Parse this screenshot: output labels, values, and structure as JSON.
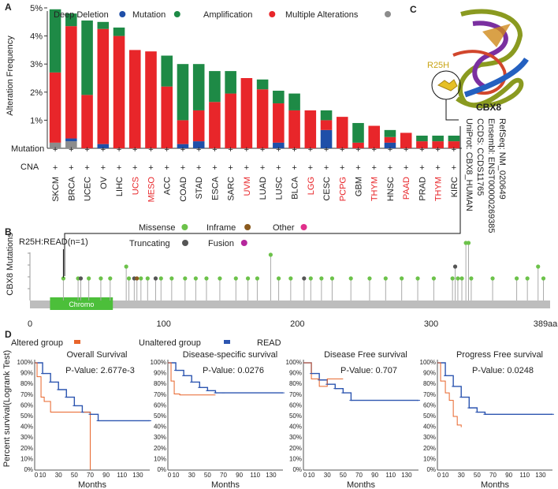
{
  "panel_labels": {
    "a": "A",
    "b": "B",
    "c": "C",
    "d": "D"
  },
  "colors": {
    "deep_deletion": "#1f4fa8",
    "mutation": "#1e8a46",
    "amplification": "#e8262a",
    "multiple": "#8c8c8c",
    "missense": "#6cc24a",
    "truncating": "#555555",
    "inframe": "#8a5a1e",
    "fusion": "#b5269c",
    "other": "#e0308b",
    "domain": "#4cbf3a",
    "survival_altered": "#e8642a",
    "survival_unaltered": "#2c55b0"
  },
  "chart_data": [
    {
      "type": "bar",
      "panel": "A",
      "ylabel": "Alteration Frequency",
      "ylim": [
        0,
        5
      ],
      "yticks": [
        "1%",
        "2%",
        "3%",
        "4%",
        "5%"
      ],
      "legend": [
        "Deep Deletion",
        "Mutation",
        "Amplification",
        "Multiple Alterations"
      ],
      "row_labels": [
        "Mutation",
        "CNA"
      ],
      "categories": [
        "SKCM",
        "BRCA",
        "UCEC",
        "OV",
        "LIHC",
        "UCS",
        "MESO",
        "ACC",
        "COAD",
        "STAD",
        "ESCA",
        "SARC",
        "UVM",
        "LUAD",
        "LUSC",
        "BLCA",
        "LGG",
        "CESC",
        "PCPG",
        "GBM",
        "THYM",
        "HNSC",
        "PAAD",
        "PRAD",
        "THYM",
        "KIRC"
      ],
      "highlighted": [
        "UCS",
        "MESO",
        "UVM",
        "LGG",
        "PCPG",
        "THYM",
        "PAAD"
      ],
      "series": [
        {
          "name": "Multiple Alterations",
          "values": [
            0.2,
            0.25,
            0,
            0,
            0,
            0,
            0,
            0,
            0,
            0,
            0,
            0,
            0,
            0,
            0,
            0,
            0,
            0,
            0,
            0,
            0,
            0,
            0,
            0,
            0,
            0
          ]
        },
        {
          "name": "Deep Deletion",
          "values": [
            0,
            0.1,
            0,
            0.15,
            0,
            0,
            0,
            0,
            0.15,
            0.25,
            0,
            0,
            0,
            0,
            0.2,
            0,
            0,
            0.65,
            0,
            0,
            0,
            0.2,
            0,
            0,
            0,
            0
          ]
        },
        {
          "name": "Amplification",
          "values": [
            2.5,
            4.0,
            1.9,
            4.1,
            4.0,
            3.5,
            3.45,
            2.2,
            0.85,
            1.1,
            1.65,
            1.95,
            2.5,
            2.1,
            1.4,
            1.35,
            1.35,
            0.35,
            1.12,
            0.2,
            0.8,
            0.2,
            0.55,
            0.25,
            0.25,
            0.25
          ]
        },
        {
          "name": "Mutation",
          "values": [
            2.25,
            0.45,
            2.65,
            0.25,
            0.3,
            0,
            0,
            1.1,
            2.0,
            1.65,
            1.1,
            0.8,
            0,
            0.35,
            0.45,
            0.6,
            0,
            0.35,
            0,
            0.7,
            0,
            0.25,
            0,
            0.2,
            0.2,
            0.2
          ]
        }
      ]
    },
    {
      "type": "scatter",
      "panel": "B",
      "ylabel": "CBX8 Mutations",
      "xlim": [
        0,
        389
      ],
      "xticks": [
        "0",
        "100",
        "200",
        "300",
        "389aa"
      ],
      "annotation": "R25H:READ(n=1)",
      "domain_label": "Chromo",
      "domain_range": [
        15,
        62
      ],
      "legend": [
        "Missense",
        "Inframe",
        "Other",
        "Truncating",
        "Fusion"
      ],
      "mutations": [
        {
          "pos": 25,
          "count": 1,
          "kind": "missense"
        },
        {
          "pos": 36,
          "count": 1,
          "kind": "missense"
        },
        {
          "pos": 38,
          "count": 1,
          "kind": "truncating"
        },
        {
          "pos": 44,
          "count": 1,
          "kind": "missense"
        },
        {
          "pos": 53,
          "count": 1,
          "kind": "missense"
        },
        {
          "pos": 60,
          "count": 1,
          "kind": "missense"
        },
        {
          "pos": 72,
          "count": 2,
          "kind": "missense"
        },
        {
          "pos": 74,
          "count": 1,
          "kind": "missense"
        },
        {
          "pos": 78,
          "count": 1,
          "kind": "truncating"
        },
        {
          "pos": 80,
          "count": 1,
          "kind": "inframe"
        },
        {
          "pos": 83,
          "count": 1,
          "kind": "missense"
        },
        {
          "pos": 88,
          "count": 1,
          "kind": "missense"
        },
        {
          "pos": 94,
          "count": 1,
          "kind": "truncating"
        },
        {
          "pos": 98,
          "count": 1,
          "kind": "missense"
        },
        {
          "pos": 106,
          "count": 1,
          "kind": "missense"
        },
        {
          "pos": 116,
          "count": 1,
          "kind": "missense"
        },
        {
          "pos": 124,
          "count": 1,
          "kind": "missense"
        },
        {
          "pos": 132,
          "count": 1,
          "kind": "missense"
        },
        {
          "pos": 142,
          "count": 1,
          "kind": "missense"
        },
        {
          "pos": 154,
          "count": 1,
          "kind": "missense"
        },
        {
          "pos": 163,
          "count": 1,
          "kind": "missense"
        },
        {
          "pos": 170,
          "count": 1,
          "kind": "missense"
        },
        {
          "pos": 180,
          "count": 3,
          "kind": "missense"
        },
        {
          "pos": 186,
          "count": 1,
          "kind": "missense"
        },
        {
          "pos": 195,
          "count": 1,
          "kind": "missense"
        },
        {
          "pos": 205,
          "count": 1,
          "kind": "truncating"
        },
        {
          "pos": 210,
          "count": 1,
          "kind": "missense"
        },
        {
          "pos": 218,
          "count": 1,
          "kind": "missense"
        },
        {
          "pos": 226,
          "count": 1,
          "kind": "missense"
        },
        {
          "pos": 240,
          "count": 1,
          "kind": "missense"
        },
        {
          "pos": 254,
          "count": 1,
          "kind": "missense"
        },
        {
          "pos": 266,
          "count": 1,
          "kind": "missense"
        },
        {
          "pos": 278,
          "count": 1,
          "kind": "missense"
        },
        {
          "pos": 290,
          "count": 1,
          "kind": "missense"
        },
        {
          "pos": 302,
          "count": 1,
          "kind": "missense"
        },
        {
          "pos": 316,
          "count": 1,
          "kind": "missense"
        },
        {
          "pos": 318,
          "count": 2,
          "kind": "truncating"
        },
        {
          "pos": 320,
          "count": 1,
          "kind": "missense"
        },
        {
          "pos": 323,
          "count": 1,
          "kind": "missense"
        },
        {
          "pos": 326,
          "count": 4,
          "kind": "missense"
        },
        {
          "pos": 328,
          "count": 4,
          "kind": "missense"
        },
        {
          "pos": 330,
          "count": 1,
          "kind": "missense"
        },
        {
          "pos": 346,
          "count": 1,
          "kind": "missense"
        },
        {
          "pos": 364,
          "count": 1,
          "kind": "missense"
        },
        {
          "pos": 372,
          "count": 1,
          "kind": "missense"
        },
        {
          "pos": 380,
          "count": 2,
          "kind": "missense"
        },
        {
          "pos": 384,
          "count": 1,
          "kind": "missense"
        }
      ]
    },
    {
      "type": "line",
      "panel": "D",
      "ylabel": "Percent survival(Logrank Test)",
      "xlabel": "Months",
      "legend": [
        "Altered group",
        "Unaltered group",
        "READ"
      ],
      "yticks": [
        "0%",
        "10%",
        "20%",
        "30%",
        "40%",
        "50%",
        "60%",
        "70%",
        "80%",
        "90%",
        "100%"
      ],
      "xticks": [
        "0",
        "10",
        "30",
        "50",
        "70",
        "90",
        "110",
        "130"
      ],
      "ylim": [
        0,
        100
      ],
      "xlim": [
        0,
        145
      ],
      "plots": [
        {
          "title": "Overall Survival",
          "pvalue": "P-Value: 2.677e-3",
          "altered": [
            [
              0,
              100
            ],
            [
              3,
              87
            ],
            [
              8,
              68
            ],
            [
              12,
              64
            ],
            [
              15,
              64
            ],
            [
              20,
              54
            ],
            [
              70,
              54
            ],
            [
              70,
              0
            ]
          ],
          "unaltered": [
            [
              0,
              100
            ],
            [
              10,
              90
            ],
            [
              20,
              82
            ],
            [
              30,
              75
            ],
            [
              40,
              68
            ],
            [
              50,
              60
            ],
            [
              60,
              54
            ],
            [
              70,
              52
            ],
            [
              80,
              46
            ],
            [
              145,
              46
            ]
          ]
        },
        {
          "title": "Disease-specific survival",
          "pvalue": "P-Value: 0.0276",
          "altered": [
            [
              0,
              100
            ],
            [
              4,
              83
            ],
            [
              8,
              71
            ],
            [
              15,
              70
            ],
            [
              60,
              70
            ]
          ],
          "unaltered": [
            [
              0,
              100
            ],
            [
              10,
              93
            ],
            [
              20,
              88
            ],
            [
              30,
              82
            ],
            [
              40,
              77
            ],
            [
              50,
              74
            ],
            [
              60,
              72
            ],
            [
              70,
              72
            ],
            [
              145,
              72
            ]
          ]
        },
        {
          "title": "Disease Free survival",
          "pvalue": "P-Value: 0.707",
          "altered": [
            [
              0,
              100
            ],
            [
              10,
              85
            ],
            [
              20,
              78
            ],
            [
              30,
              78
            ],
            [
              30,
              85
            ],
            [
              50,
              85
            ]
          ],
          "unaltered": [
            [
              0,
              100
            ],
            [
              10,
              90
            ],
            [
              20,
              84
            ],
            [
              30,
              80
            ],
            [
              40,
              76
            ],
            [
              50,
              72
            ],
            [
              60,
              65
            ],
            [
              145,
              65
            ]
          ]
        },
        {
          "title": "Progress Free survival",
          "pvalue": "P-Value: 0.0248",
          "altered": [
            [
              0,
              100
            ],
            [
              4,
              83
            ],
            [
              10,
              72
            ],
            [
              15,
              65
            ],
            [
              20,
              50
            ],
            [
              25,
              42
            ],
            [
              30,
              40
            ]
          ],
          "unaltered": [
            [
              0,
              100
            ],
            [
              10,
              88
            ],
            [
              20,
              78
            ],
            [
              30,
              68
            ],
            [
              40,
              58
            ],
            [
              50,
              54
            ],
            [
              60,
              52
            ],
            [
              145,
              52
            ]
          ]
        }
      ]
    }
  ],
  "panel_c": {
    "mutation_label": "R25H",
    "gene": "CBX8",
    "ids": [
      "RefSeq: NM_020649",
      "Ensembl: ENST00000269385",
      "CCDS: CCDS11765",
      "UniProt: CBX8_HUMAN"
    ]
  }
}
